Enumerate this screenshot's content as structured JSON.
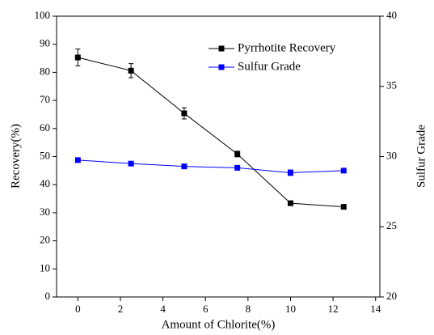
{
  "chart_data": {
    "type": "line",
    "x_label": "Amount of Chlorite(%)",
    "y_label": "Recovery(%)",
    "y2_label": "Sulfur Grade",
    "x": [
      0,
      2.5,
      5,
      7.5,
      10,
      12.5
    ],
    "series": [
      {
        "name": "Pyrrhotite Recovery",
        "color": "#000000",
        "values": [
          85.3,
          80.6,
          65.4,
          50.9,
          33.4,
          32.1
        ],
        "errors": [
          3,
          2.5,
          2,
          1,
          0.5,
          0.5
        ]
      },
      {
        "name": "Sulfur Grade",
        "color": "#0000ff",
        "axis": "y2",
        "values": [
          29.75,
          29.5,
          29.3,
          29.2,
          28.85,
          29.0
        ],
        "errors": [
          0.15,
          0.15,
          0.1,
          0.1,
          0.2,
          0.05
        ]
      }
    ],
    "xlim": [
      -1,
      14.2
    ],
    "xticks": [
      0,
      2,
      4,
      6,
      8,
      10,
      12,
      14
    ],
    "ylim": [
      0,
      100
    ],
    "yticks": [
      0,
      10,
      20,
      30,
      40,
      50,
      60,
      70,
      80,
      90,
      100
    ],
    "y2lim": [
      20,
      40
    ],
    "y2ticks": [
      20,
      25,
      30,
      35,
      40
    ],
    "legend": "upper-right",
    "grid": false
  }
}
